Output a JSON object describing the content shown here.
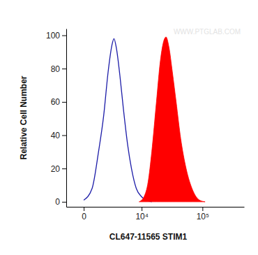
{
  "chart_data": {
    "type": "histogram",
    "x_label": "CL647-11565 STIM1",
    "y_label": "Relative Cell Number",
    "annotations": [
      "WWW.PTGLAB.COM"
    ],
    "log": "x",
    "xlim": [
      -1250,
      450000
    ],
    "xticks": [
      0,
      {
        "value": 10000,
        "label": "10⁴"
      },
      {
        "value": 100000,
        "label": "10⁵"
      }
    ],
    "ylim": [
      -3,
      104
    ],
    "yticks": [
      0,
      20,
      40,
      60,
      80,
      100
    ],
    "grid": false,
    "series": [
      {
        "type": "line",
        "color": "#1c1ca8",
        "x": [
          0,
          500,
          1000,
          1500,
          2000,
          2500,
          2800,
          3200,
          3800,
          4500,
          5500,
          6500,
          8000,
          10000,
          12000,
          15000
        ],
        "values": [
          1,
          8,
          30,
          52,
          78,
          94,
          98,
          92,
          76,
          56,
          34,
          20,
          8,
          3,
          1,
          0
        ]
      },
      {
        "type": "area",
        "color": "#ff0000",
        "x": [
          9000,
          11000,
          13000,
          15000,
          18000,
          21000,
          24000,
          26000,
          29000,
          33000,
          38000,
          45000,
          55000,
          70000,
          90000,
          110000
        ],
        "values": [
          0,
          3,
          12,
          30,
          60,
          85,
          97,
          99,
          93,
          78,
          60,
          38,
          20,
          7,
          1,
          0
        ]
      }
    ]
  }
}
